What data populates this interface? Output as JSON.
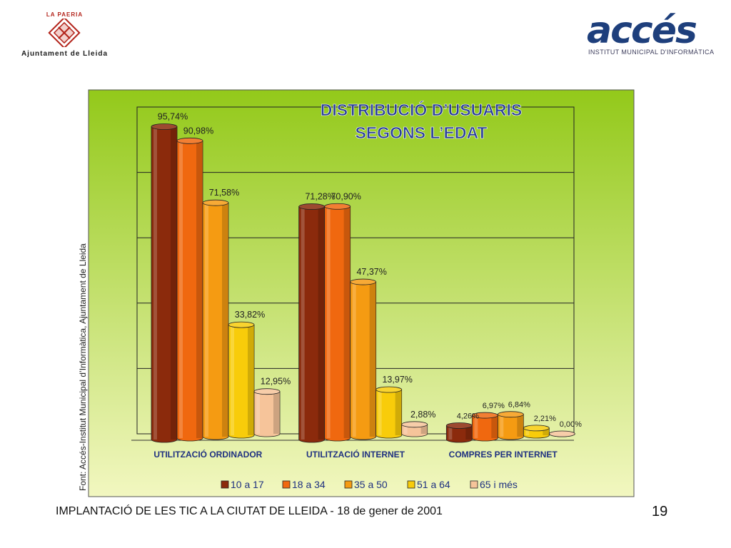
{
  "header": {
    "left_logo": {
      "top_text": "LA PAERIA",
      "bottom_text": "Ajuntament de Lleida"
    },
    "right_logo": {
      "brand_text": "accés",
      "subtitle": "INSTITUT MUNICIPAL D'INFORMÀTICA"
    }
  },
  "footer": {
    "text": "IMPLANTACIÓ DE LES TIC A LA CIUTAT DE LLEIDA - 18 de gener de 2001",
    "page_number": "19"
  },
  "chart_data": {
    "type": "bar",
    "style": "3d-cylinder",
    "title_line1": "DISTRIBUCIÓ D’USUARIS",
    "title_line2": "SEGONS L’EDAT",
    "source": "Font:  Accés-Institut Municipal d’Informàtica, Ajuntament de Lleida",
    "categories": [
      "UTILITZACIÓ ORDINADOR",
      "UTILITZACIÓ INTERNET",
      "COMPRES PER INTERNET"
    ],
    "ylim": [
      0,
      100
    ],
    "grid": true,
    "legend_position": "bottom",
    "series": [
      {
        "name": "10 a 17",
        "color": "#8b2a0c",
        "values": [
          95.74,
          71.28,
          4.26
        ],
        "labels": [
          "95,74%",
          "71,28%",
          "4,26%"
        ]
      },
      {
        "name": "18 a 34",
        "color": "#f0680f",
        "values": [
          90.98,
          70.9,
          6.97
        ],
        "labels": [
          "90,98%",
          "70,90%",
          "6,97%"
        ]
      },
      {
        "name": "35 a 50",
        "color": "#f59b12",
        "values": [
          71.58,
          47.37,
          6.84
        ],
        "labels": [
          "71,58%",
          "47,37%",
          "6,84%"
        ]
      },
      {
        "name": "51 a 64",
        "color": "#f8cc0a",
        "values": [
          33.82,
          13.97,
          2.21
        ],
        "labels": [
          "33,82%",
          "13,97%",
          "2,21%"
        ]
      },
      {
        "name": "65 i més",
        "color": "#f6c49a",
        "values": [
          12.95,
          2.88,
          0.0
        ],
        "labels": [
          "12,95%",
          "2,88%",
          "0,00%"
        ]
      }
    ],
    "colors": {
      "panel_top": "#93c91a",
      "panel_bottom": "#f2f7c0"
    }
  }
}
